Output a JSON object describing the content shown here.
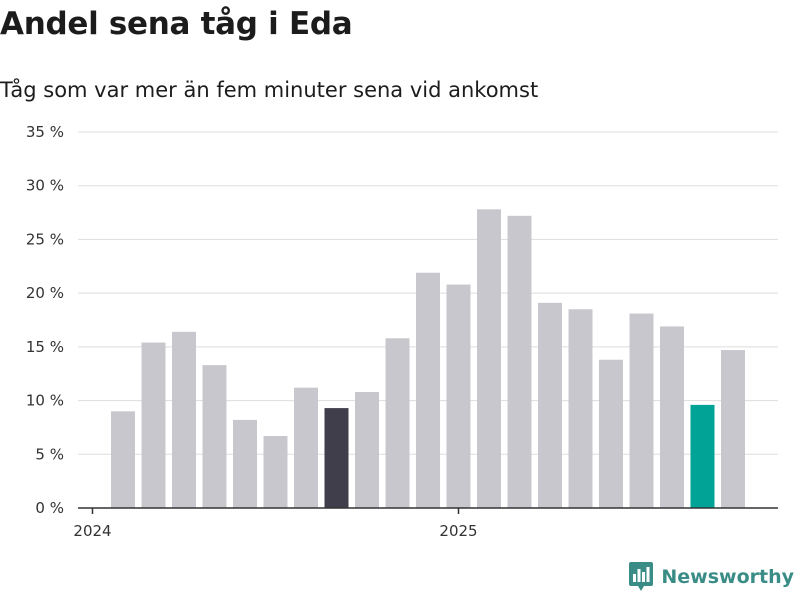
{
  "header": {
    "title": "Andel sena tåg i Eda",
    "subtitle": "Tåg som var mer än fem minuter sena vid ankomst"
  },
  "brand": {
    "name": "Newsworthy",
    "icon": "newsworthy-logo-icon"
  },
  "colors": {
    "bar_default": "#c8c7ce",
    "bar_highlight_dark": "#403e4a",
    "bar_highlight_accent": "#00a396",
    "gridline": "#dddddd",
    "axis": "#333333",
    "brand": "#3a8d86"
  },
  "chart_data": {
    "type": "bar",
    "title": "Andel sena tåg i Eda",
    "subtitle": "Tåg som var mer än fem minuter sena vid ankomst",
    "xlabel": "",
    "ylabel": "",
    "ylim": [
      0,
      35
    ],
    "yticks": [
      0,
      5,
      10,
      15,
      20,
      25,
      30,
      35
    ],
    "ytick_suffix": " %",
    "grid": true,
    "categories": [
      "2024-01",
      "2024-02",
      "2024-03",
      "2024-04",
      "2024-05",
      "2024-06",
      "2024-07",
      "2024-08",
      "2024-09",
      "2024-10",
      "2024-11",
      "2024-12",
      "2025-01",
      "2025-02",
      "2025-03",
      "2025-04",
      "2025-05",
      "2025-06",
      "2025-07",
      "2025-08",
      "2025-09",
      "2025-10",
      "2025-11",
      "2025-12"
    ],
    "values": [
      null,
      9.0,
      15.4,
      16.4,
      13.3,
      8.2,
      6.7,
      11.2,
      9.3,
      10.8,
      15.8,
      21.9,
      20.8,
      27.8,
      27.2,
      19.1,
      18.5,
      13.8,
      18.1,
      16.9,
      9.6,
      14.7,
      null,
      null
    ],
    "highlight": {
      "2024-09": "dark",
      "2025-09": "accent"
    },
    "xtick_labels": [
      {
        "category": "2024-01",
        "label": "2024"
      },
      {
        "category": "2025-01",
        "label": "2025"
      }
    ]
  }
}
